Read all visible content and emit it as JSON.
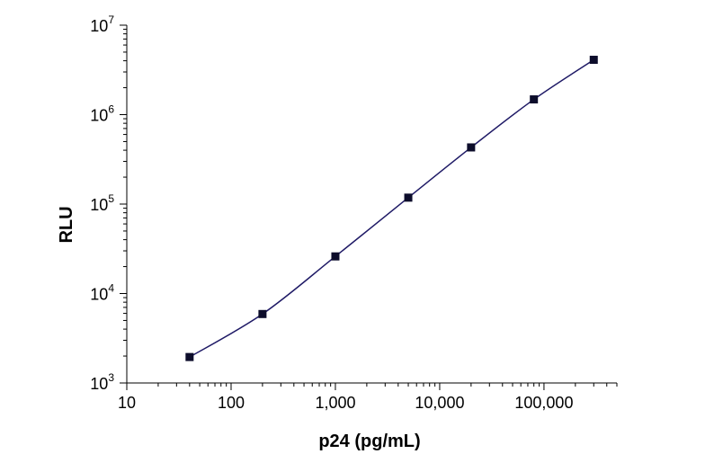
{
  "chart_data": {
    "type": "scatter",
    "xlabel": "p24 (pg/mL)",
    "ylabel": "RLU",
    "x_scale": "log",
    "y_scale": "log",
    "xlim": [
      10,
      500000
    ],
    "ylim": [
      1000,
      10000000
    ],
    "grid": false,
    "x_ticks": [
      {
        "value": 10,
        "label": "10"
      },
      {
        "value": 100,
        "label": "100"
      },
      {
        "value": 1000,
        "label": "1,000"
      },
      {
        "value": 10000,
        "label": "10,000"
      },
      {
        "value": 100000,
        "label": "100,000"
      }
    ],
    "y_ticks": [
      {
        "value": 1000,
        "base": "10",
        "exp": "3"
      },
      {
        "value": 10000,
        "base": "10",
        "exp": "4"
      },
      {
        "value": 100000,
        "base": "10",
        "exp": "5"
      },
      {
        "value": 1000000,
        "base": "10",
        "exp": "6"
      },
      {
        "value": 10000000,
        "base": "10",
        "exp": "7"
      }
    ],
    "series": [
      {
        "marker": "square",
        "marker_color": "#0d0d2b",
        "line_color": "#1f1a66",
        "fit_line": true,
        "points": [
          {
            "x": 40,
            "y": 1950
          },
          {
            "x": 200,
            "y": 5900
          },
          {
            "x": 1000,
            "y": 26000
          },
          {
            "x": 5000,
            "y": 118000
          },
          {
            "x": 20000,
            "y": 430000
          },
          {
            "x": 80000,
            "y": 1480000
          },
          {
            "x": 300000,
            "y": 4100000
          }
        ]
      }
    ]
  }
}
